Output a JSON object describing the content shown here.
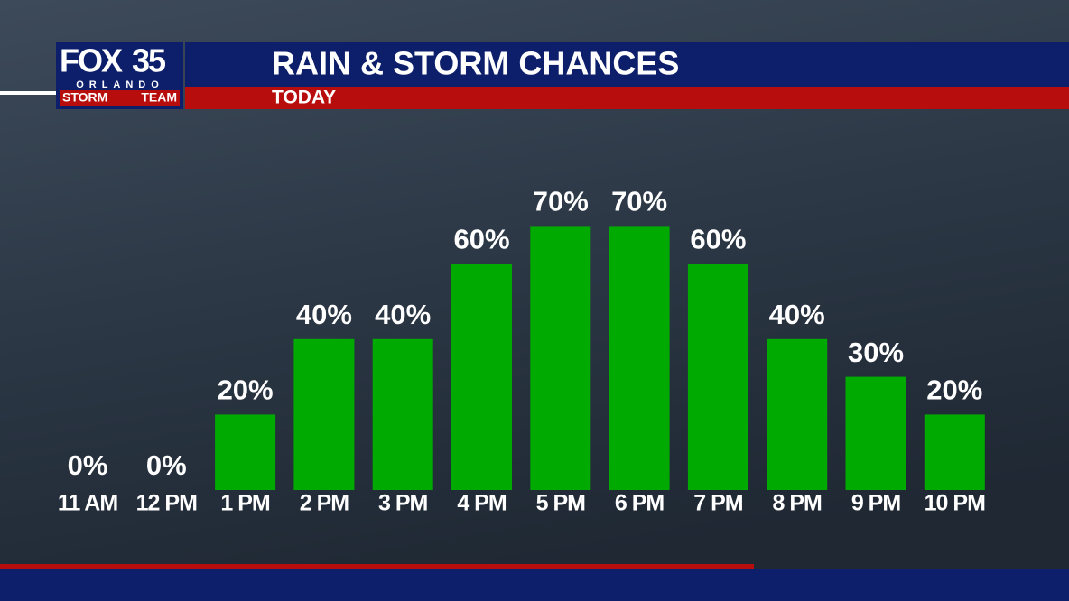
{
  "chart_data": {
    "type": "bar",
    "logo": {
      "brand": "FOX",
      "number": "35",
      "city": "ORLANDO",
      "team": "STORM",
      "team2": "TEAM"
    },
    "title": "RAIN & STORM CHANCES",
    "subtitle": "TODAY",
    "categories": [
      "11 AM",
      "12 PM",
      "1 PM",
      "2 PM",
      "3 PM",
      "4 PM",
      "5 PM",
      "6 PM",
      "7 PM",
      "8 PM",
      "9 PM",
      "10 PM"
    ],
    "values": [
      0,
      0,
      20,
      40,
      40,
      60,
      70,
      70,
      60,
      40,
      30,
      20
    ],
    "value_labels": [
      "0%",
      "0%",
      "20%",
      "40%",
      "40%",
      "60%",
      "70%",
      "70%",
      "60%",
      "40%",
      "30%",
      "20%"
    ],
    "color": "#00aa00"
  }
}
